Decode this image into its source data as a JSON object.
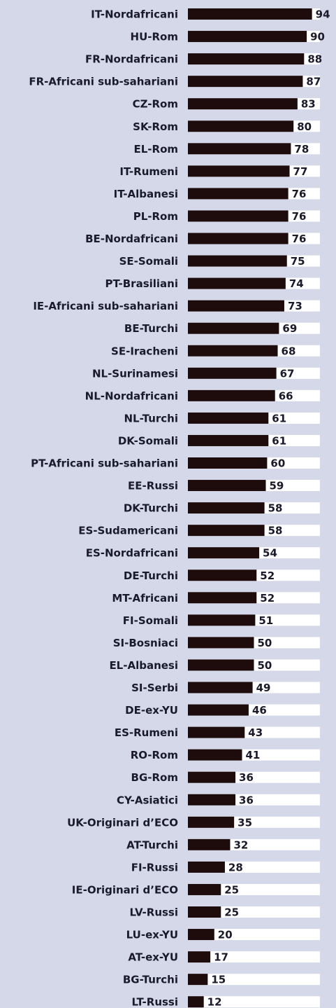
{
  "chart_data": {
    "type": "bar",
    "orientation": "horizontal",
    "categories": [
      "IT-Nordafricani",
      "HU-Rom",
      "FR-Nordafricani",
      "FR-Africani sub-sahariani",
      "CZ-Rom",
      "SK-Rom",
      "EL-Rom",
      "IT-Rumeni",
      "IT-Albanesi",
      "PL-Rom",
      "BE-Nordafricani",
      "SE-Somali",
      "PT-Brasiliani",
      "IE-Africani sub-sahariani",
      "BE-Turchi",
      "SE-Iracheni",
      "NL-Surinamesi",
      "NL-Nordafricani",
      "NL-Turchi",
      "DK-Somali",
      "PT-Africani sub-sahariani",
      "EE-Russi",
      "DK-Turchi",
      "ES-Sudamericani",
      "ES-Nordafricani",
      "DE-Turchi",
      "MT-Africani",
      "FI-Somali",
      "SI-Bosniaci",
      "EL-Albanesi",
      "SI-Serbi",
      "DE-ex-YU",
      "ES-Rumeni",
      "RO-Rom",
      "BG-Rom",
      "CY-Asiatici",
      "UK-Originari d’ECO",
      "AT-Turchi",
      "FI-Russi",
      "IE-Originari d’ECO",
      "LV-Russi",
      "LU-ex-YU",
      "AT-ex-YU",
      "BG-Turchi",
      "LT-Russi"
    ],
    "values": [
      94,
      90,
      88,
      87,
      83,
      80,
      78,
      77,
      76,
      76,
      76,
      75,
      74,
      73,
      69,
      68,
      67,
      66,
      61,
      61,
      60,
      59,
      58,
      58,
      54,
      52,
      52,
      51,
      50,
      50,
      49,
      46,
      43,
      41,
      36,
      36,
      35,
      32,
      28,
      25,
      25,
      20,
      17,
      15,
      12
    ],
    "color": "#1e0c0c",
    "xlim": [
      0,
      100
    ]
  }
}
